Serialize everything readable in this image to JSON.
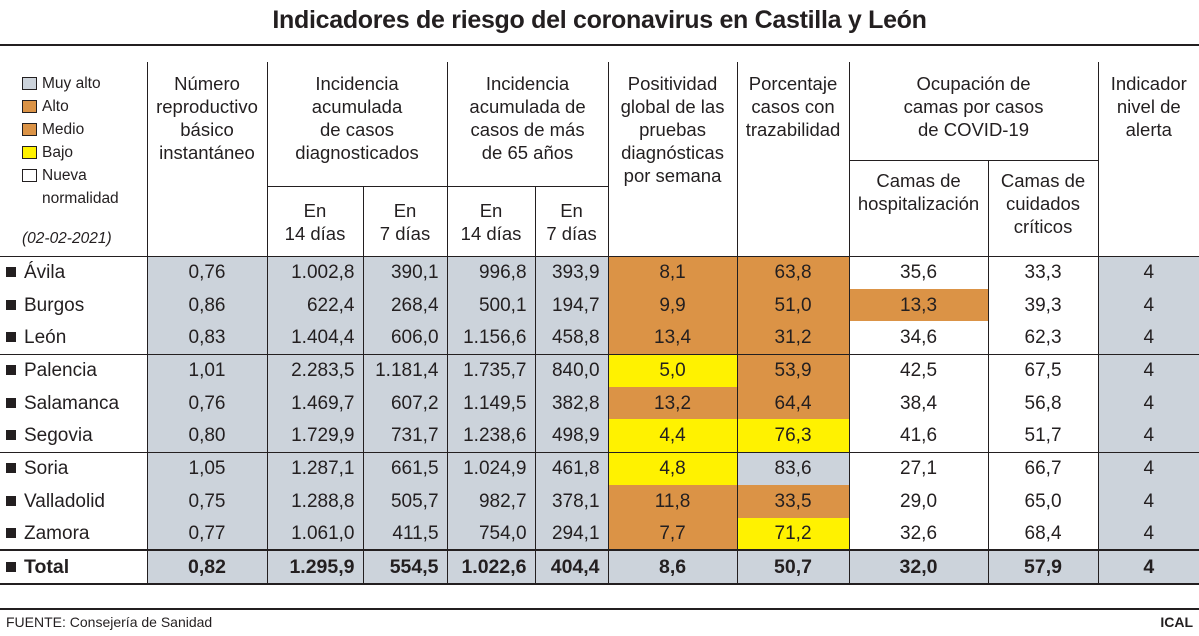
{
  "title": "Indicadores de riesgo del coronavirus en Castilla y León",
  "colors": {
    "muy_alto": "#ccd3db",
    "alto": "#db9346",
    "medio": "#db9346",
    "bajo": "#fff200",
    "nueva": "#ffffff"
  },
  "legend": {
    "items": [
      "Muy alto",
      "Alto",
      "Medio",
      "Bajo",
      "Nueva",
      "normalidad"
    ],
    "date": "(02-02-2021)"
  },
  "headers": {
    "r": [
      "Número",
      "reproductivo",
      "básico",
      "instantáneo"
    ],
    "ia14": [
      "Incidencia",
      "acumulada",
      "de casos",
      "diagnosticados"
    ],
    "ia65": [
      "Incidencia",
      "acumulada de",
      "casos de más",
      "de 65 años"
    ],
    "pos": [
      "Positividad",
      "global de las",
      "pruebas",
      "diagnósticas",
      "por semana"
    ],
    "traz": [
      "Porcentaje",
      "casos con",
      "trazabilidad"
    ],
    "ocu": [
      "Ocupación de",
      "camas por casos",
      "de COVID-19"
    ],
    "ind": [
      "Indicador",
      "nivel de",
      "alerta"
    ],
    "en": "En",
    "d14": "14 días",
    "d7": "7 días",
    "hosp": [
      "Camas de",
      "hospitalización"
    ],
    "uci": [
      "Camas de",
      "cuidados",
      "críticos"
    ]
  },
  "rows": [
    {
      "name": "Ávila",
      "r": "0,76",
      "ia14": "1.002,8",
      "ia7": "390,1",
      "ia65_14": "996,8",
      "ia65_7": "393,9",
      "pos": "8,1",
      "traz": "63,8",
      "hosp": "35,6",
      "uci": "33,3",
      "ind": "4"
    },
    {
      "name": "Burgos",
      "r": "0,86",
      "ia14": "622,4",
      "ia7": "268,4",
      "ia65_14": "500,1",
      "ia65_7": "194,7",
      "pos": "9,9",
      "traz": "51,0",
      "hosp": "13,3",
      "uci": "39,3",
      "ind": "4"
    },
    {
      "name": "León",
      "r": "0,83",
      "ia14": "1.404,4",
      "ia7": "606,0",
      "ia65_14": "1.156,6",
      "ia65_7": "458,8",
      "pos": "13,4",
      "traz": "31,2",
      "hosp": "34,6",
      "uci": "62,3",
      "ind": "4"
    },
    {
      "name": "Palencia",
      "r": "1,01",
      "ia14": "2.283,5",
      "ia7": "1.181,4",
      "ia65_14": "1.735,7",
      "ia65_7": "840,0",
      "pos": "5,0",
      "traz": "53,9",
      "hosp": "42,5",
      "uci": "67,5",
      "ind": "4"
    },
    {
      "name": "Salamanca",
      "r": "0,76",
      "ia14": "1.469,7",
      "ia7": "607,2",
      "ia65_14": "1.149,5",
      "ia65_7": "382,8",
      "pos": "13,2",
      "traz": "64,4",
      "hosp": "38,4",
      "uci": "56,8",
      "ind": "4"
    },
    {
      "name": "Segovia",
      "r": "0,80",
      "ia14": "1.729,9",
      "ia7": "731,7",
      "ia65_14": "1.238,6",
      "ia65_7": "498,9",
      "pos": "4,4",
      "traz": "76,3",
      "hosp": "41,6",
      "uci": "51,7",
      "ind": "4"
    },
    {
      "name": "Soria",
      "r": "1,05",
      "ia14": "1.287,1",
      "ia7": "661,5",
      "ia65_14": "1.024,9",
      "ia65_7": "461,8",
      "pos": "4,8",
      "traz": "83,6",
      "hosp": "27,1",
      "uci": "66,7",
      "ind": "4"
    },
    {
      "name": "Valladolid",
      "r": "0,75",
      "ia14": "1.288,8",
      "ia7": "505,7",
      "ia65_14": "982,7",
      "ia65_7": "378,1",
      "pos": "11,8",
      "traz": "33,5",
      "hosp": "29,0",
      "uci": "65,0",
      "ind": "4"
    },
    {
      "name": "Zamora",
      "r": "0,77",
      "ia14": "1.061,0",
      "ia7": "411,5",
      "ia65_14": "754,0",
      "ia65_7": "294,1",
      "pos": "7,7",
      "traz": "71,2",
      "hosp": "32,6",
      "uci": "68,4",
      "ind": "4"
    }
  ],
  "total": {
    "name": "Total",
    "r": "0,82",
    "ia14": "1.295,9",
    "ia7": "554,5",
    "ia65_14": "1.022,6",
    "ia65_7": "404,4",
    "pos": "8,6",
    "traz": "50,7",
    "hosp": "32,0",
    "uci": "57,9",
    "ind": "4"
  },
  "footer": {
    "source": "FUENTE: Consejería de Sanidad",
    "brand": "ICAL"
  }
}
